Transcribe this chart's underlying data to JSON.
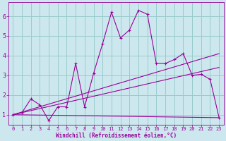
{
  "xlabel": "Windchill (Refroidissement éolien,°C)",
  "bg_color": "#cce8ee",
  "line_color": "#990099",
  "grid_color": "#99cccc",
  "xlim": [
    -0.5,
    23.5
  ],
  "ylim": [
    0.5,
    6.7
  ],
  "xticks": [
    0,
    1,
    2,
    3,
    4,
    5,
    6,
    7,
    8,
    9,
    10,
    11,
    12,
    13,
    14,
    15,
    16,
    17,
    18,
    19,
    20,
    21,
    22,
    23
  ],
  "yticks": [
    1,
    2,
    3,
    4,
    5,
    6
  ],
  "main_x": [
    0,
    1,
    2,
    3,
    4,
    5,
    6,
    7,
    8,
    9,
    10,
    11,
    12,
    13,
    14,
    15,
    16,
    17,
    18,
    19,
    20,
    21,
    22,
    23
  ],
  "main_y": [
    1.0,
    1.1,
    1.8,
    1.5,
    0.7,
    1.4,
    1.4,
    3.6,
    1.4,
    3.1,
    4.6,
    6.2,
    4.9,
    5.3,
    6.3,
    6.1,
    3.6,
    3.6,
    3.8,
    4.1,
    3.0,
    3.05,
    2.8,
    0.85
  ],
  "trend1_x": [
    0,
    23
  ],
  "trend1_y": [
    1.0,
    4.1
  ],
  "trend2_x": [
    0,
    23
  ],
  "trend2_y": [
    1.0,
    3.4
  ],
  "trend3_x": [
    0,
    23
  ],
  "trend3_y": [
    1.0,
    0.85
  ],
  "xlabel_fontsize": 5.5,
  "tick_fontsize": 5.0
}
